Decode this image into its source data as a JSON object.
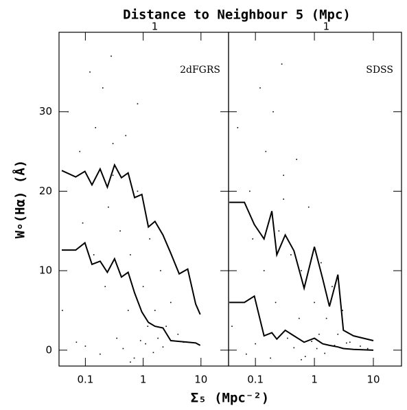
{
  "chart_data": [
    {
      "type": "scatter",
      "title": "Distance to Neighbour 5 (Mpc)",
      "ylabel": "W∘(Hα) (Å)",
      "xlabel": "Σ₅ (Mpc⁻²)",
      "annotation": "2dFGRS",
      "log_x": true,
      "color": "#000000",
      "xlim": [
        0.035,
        30
      ],
      "ylim": [
        -2,
        40
      ],
      "xticks": [
        0.1,
        1,
        10
      ],
      "yticks": [
        0,
        10,
        20,
        30
      ],
      "x2ticks": [
        {
          "value": 1.59,
          "label": "1"
        }
      ],
      "points": {
        "x": [
          0.05,
          0.08,
          0.12,
          0.15,
          0.2,
          0.25,
          0.3,
          0.4,
          0.5,
          0.6,
          0.8,
          1.0,
          1.3,
          1.6,
          2.0,
          2.5,
          3.0,
          4.0,
          0.07,
          0.1,
          0.18,
          0.35,
          0.45,
          0.7,
          0.9,
          1.1,
          1.5,
          2.2,
          0.09,
          0.22,
          0.3,
          0.55,
          1.2,
          0.14,
          0.6,
          5.0,
          0.04,
          0.28,
          0.8,
          1.8
        ],
        "values": [
          30,
          25,
          35,
          28,
          33,
          18,
          26,
          15,
          27,
          12,
          20,
          8,
          14,
          5,
          10,
          3,
          6,
          2,
          1,
          0.5,
          -0.5,
          1.5,
          0.2,
          -1,
          1.2,
          0.8,
          -0.3,
          0.4,
          16,
          8,
          22,
          5,
          3,
          12,
          -1.5,
          1,
          5,
          37,
          31,
          1.5
        ]
      },
      "series": [
        {
          "x": [
            0.039,
            0.068,
            0.098,
            0.13,
            0.18,
            0.24,
            0.32,
            0.42,
            0.55,
            0.71,
            0.95,
            1.23,
            1.6,
            2.2,
            3.0,
            4.2,
            5.9,
            8.1,
            9.7
          ],
          "values": [
            22.6,
            21.8,
            22.5,
            20.8,
            22.8,
            20.5,
            23.3,
            21.7,
            22.3,
            19.2,
            19.6,
            15.5,
            16.2,
            14.5,
            12.2,
            9.6,
            10.2,
            5.8,
            4.5
          ]
        },
        {
          "x": [
            0.039,
            0.068,
            0.098,
            0.13,
            0.18,
            0.24,
            0.32,
            0.42,
            0.55,
            0.71,
            0.95,
            1.23,
            1.6,
            2.2,
            3.0,
            4.2,
            5.9,
            8.1,
            9.7
          ],
          "values": [
            12.6,
            12.6,
            13.5,
            10.8,
            11.2,
            9.8,
            11.5,
            9.2,
            9.8,
            7.2,
            4.8,
            3.5,
            3.0,
            2.8,
            1.2,
            1.1,
            1.0,
            0.9,
            0.6
          ]
        }
      ]
    },
    {
      "type": "scatter",
      "annotation": "SDSS",
      "log_x": true,
      "color": "#000000",
      "xlim": [
        0.035,
        30
      ],
      "ylim": [
        -2,
        40
      ],
      "xticks": [
        0.1,
        1,
        10
      ],
      "yticks": [
        0,
        10,
        20,
        30
      ],
      "x2ticks": [
        {
          "value": 1.59,
          "label": "1"
        }
      ],
      "points": {
        "x": [
          0.05,
          0.08,
          0.12,
          0.15,
          0.2,
          0.25,
          0.3,
          0.4,
          0.5,
          0.6,
          0.8,
          1.0,
          1.3,
          1.6,
          2.0,
          2.5,
          3.0,
          4.0,
          6.0,
          0.07,
          0.1,
          0.18,
          0.35,
          0.45,
          0.7,
          0.9,
          1.1,
          1.5,
          2.2,
          0.09,
          0.22,
          0.3,
          0.55,
          1.2,
          0.14,
          0.6,
          8.0,
          0.04,
          0.28,
          3.5
        ],
        "values": [
          28,
          20,
          33,
          25,
          30,
          15,
          22,
          12,
          24,
          10,
          18,
          6,
          11,
          4,
          8,
          2,
          5,
          1,
          0.5,
          -0.5,
          0.8,
          -1,
          1.5,
          0.3,
          -0.8,
          1.1,
          0.2,
          -0.4,
          0.6,
          14,
          6,
          19,
          4,
          2,
          10,
          -1.2,
          0.2,
          3,
          36,
          0.9
        ]
      },
      "series": [
        {
          "x": [
            0.036,
            0.065,
            0.096,
            0.14,
            0.19,
            0.23,
            0.32,
            0.45,
            0.67,
            1.0,
            1.38,
            1.8,
            2.5,
            3.1,
            4.6,
            10
          ],
          "values": [
            18.6,
            18.6,
            15.8,
            14.0,
            17.5,
            12.0,
            14.5,
            12.5,
            7.8,
            13.0,
            9.0,
            5.5,
            9.5,
            2.5,
            1.8,
            1.2
          ]
        },
        {
          "x": [
            0.036,
            0.065,
            0.096,
            0.14,
            0.19,
            0.23,
            0.32,
            0.45,
            0.67,
            1.0,
            1.38,
            1.8,
            2.5,
            3.1,
            4.6,
            10
          ],
          "values": [
            6.0,
            6.0,
            6.8,
            1.8,
            2.2,
            1.4,
            2.5,
            1.8,
            1.0,
            1.5,
            0.8,
            0.6,
            0.4,
            0.2,
            0.1,
            0.0
          ]
        }
      ]
    }
  ]
}
